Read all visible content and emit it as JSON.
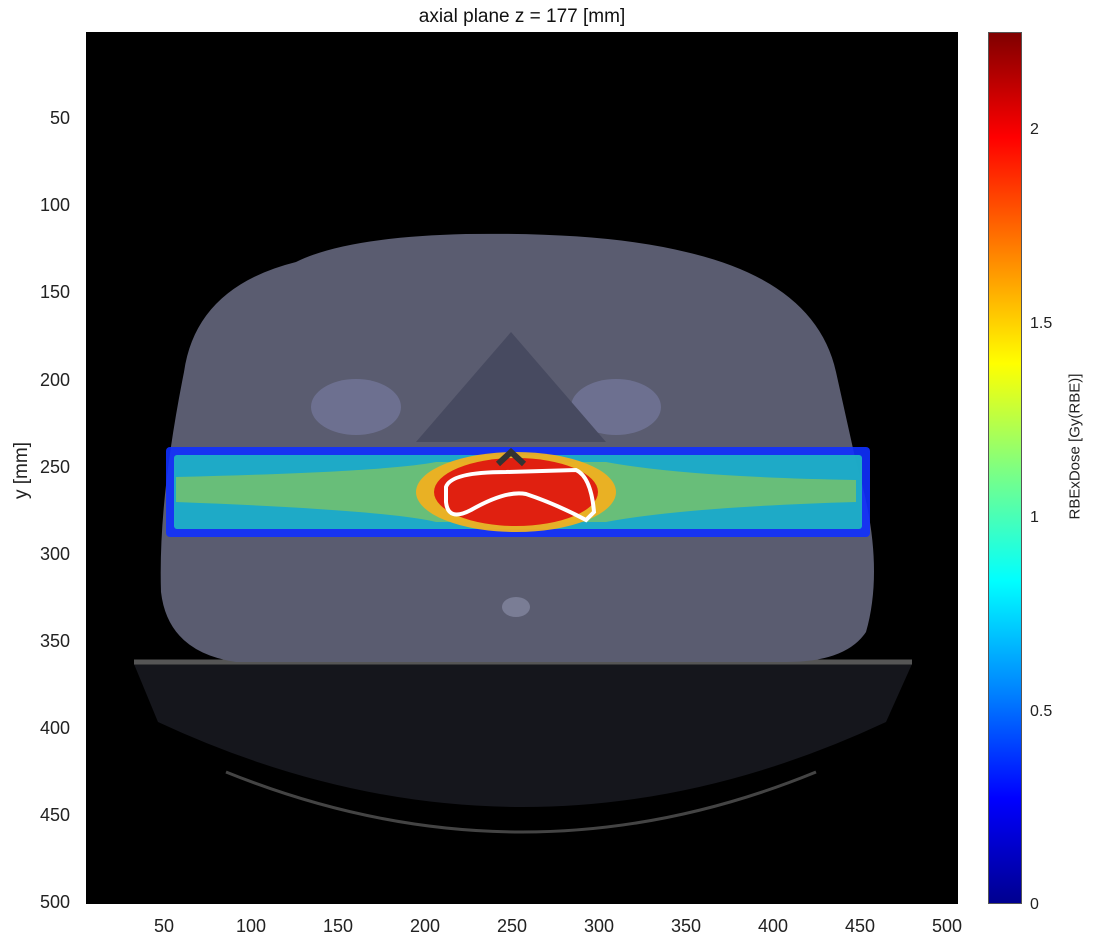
{
  "title": "axial plane z = 177 [mm]",
  "ylabel": "y [mm]",
  "colorbar_label": "RBExDose [Gy(RBE)]",
  "y_ticks": [
    "50",
    "100",
    "150",
    "200",
    "250",
    "300",
    "350",
    "400",
    "450",
    "500"
  ],
  "x_ticks": [
    "50",
    "100",
    "150",
    "200",
    "250",
    "300",
    "350",
    "400",
    "450",
    "500"
  ],
  "colorbar_ticks": [
    "0",
    "0.5",
    "1",
    "1.5",
    "2"
  ],
  "colors": {
    "body": "#5a5c70",
    "background": "#000000",
    "dose_outer": "#1030ff",
    "dose_mid": "#20c0c0",
    "dose_high": "#e02010",
    "target_contour": "#ffffff"
  }
}
